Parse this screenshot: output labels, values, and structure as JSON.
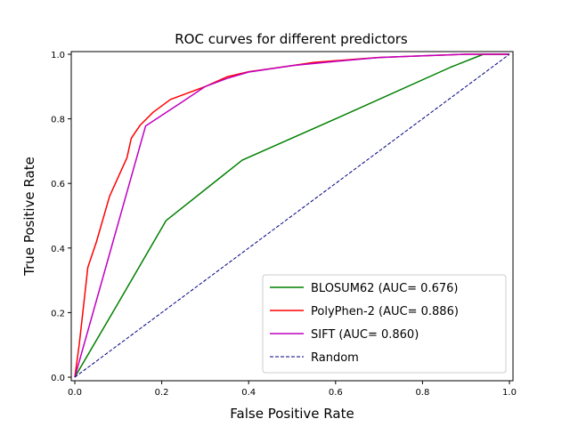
{
  "chart_data": {
    "type": "line",
    "title": "ROC curves for different predictors",
    "xlabel": "False Positive Rate",
    "ylabel": "True Positive Rate",
    "xlim": [
      0,
      1
    ],
    "ylim": [
      0,
      1
    ],
    "x_ticks": [
      "0.0",
      "0.2",
      "0.4",
      "0.6",
      "0.8",
      "1.0"
    ],
    "y_ticks": [
      "0.0",
      "0.2",
      "0.4",
      "0.6",
      "0.8",
      "1.0"
    ],
    "grid": false,
    "legend_position": "lower-right",
    "series": [
      {
        "name": "BLOSUM62 (AUC= 0.676)",
        "color": "#008000",
        "style": "solid",
        "points": [
          [
            0,
            0
          ],
          [
            0.1,
            0.23
          ],
          [
            0.21,
            0.485
          ],
          [
            0.385,
            0.672
          ],
          [
            0.6,
            0.8
          ],
          [
            0.865,
            0.96
          ],
          [
            0.94,
            1.0
          ],
          [
            1.0,
            1.0
          ]
        ]
      },
      {
        "name": "PolyPhen-2 (AUC= 0.886)",
        "color": "#ff0000",
        "style": "solid",
        "points": [
          [
            0,
            0
          ],
          [
            0.01,
            0.1
          ],
          [
            0.02,
            0.22
          ],
          [
            0.03,
            0.34
          ],
          [
            0.05,
            0.42
          ],
          [
            0.08,
            0.56
          ],
          [
            0.1,
            0.62
          ],
          [
            0.12,
            0.68
          ],
          [
            0.13,
            0.74
          ],
          [
            0.15,
            0.78
          ],
          [
            0.18,
            0.82
          ],
          [
            0.22,
            0.86
          ],
          [
            0.26,
            0.88
          ],
          [
            0.3,
            0.9
          ],
          [
            0.35,
            0.93
          ],
          [
            0.4,
            0.946
          ],
          [
            0.45,
            0.955
          ],
          [
            0.5,
            0.965
          ],
          [
            0.55,
            0.975
          ],
          [
            0.6,
            0.98
          ],
          [
            0.65,
            0.985
          ],
          [
            0.7,
            0.99
          ],
          [
            0.8,
            0.995
          ],
          [
            0.9,
            1.0
          ],
          [
            1.0,
            1.0
          ]
        ]
      },
      {
        "name": "SIFT (AUC= 0.860)",
        "color": "#bf00bf",
        "style": "solid",
        "points": [
          [
            0,
            0
          ],
          [
            0.163,
            0.778
          ],
          [
            0.25,
            0.855
          ],
          [
            0.3,
            0.9
          ],
          [
            0.35,
            0.925
          ],
          [
            0.4,
            0.945
          ],
          [
            0.5,
            0.965
          ],
          [
            0.6,
            0.978
          ],
          [
            0.7,
            0.99
          ],
          [
            0.8,
            0.995
          ],
          [
            0.9,
            1.0
          ],
          [
            1.0,
            1.0
          ]
        ]
      },
      {
        "name": "Random",
        "color": "#00007f",
        "style": "dashed",
        "points": [
          [
            0,
            0
          ],
          [
            1,
            1
          ]
        ]
      }
    ]
  }
}
